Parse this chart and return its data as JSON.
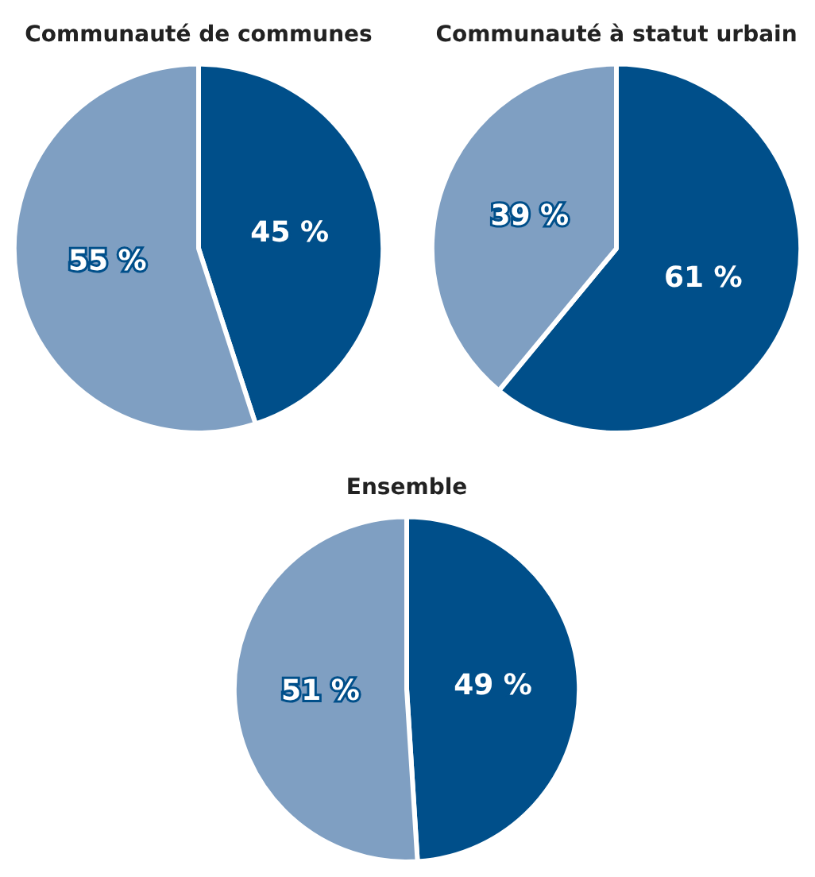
{
  "chart_data": [
    {
      "type": "pie",
      "title": "Communauté de communes",
      "categories": [
        null,
        null
      ],
      "values": [
        45,
        55
      ],
      "colors": [
        "#004f8a",
        "#7f9fc2"
      ],
      "value_labels": [
        "45 %",
        "55 %"
      ],
      "legend": false
    },
    {
      "type": "pie",
      "title": "Communauté à statut urbain",
      "categories": [
        null,
        null
      ],
      "values": [
        61,
        39
      ],
      "colors": [
        "#004f8a",
        "#7f9fc2"
      ],
      "value_labels": [
        "61 %",
        "39 %"
      ],
      "legend": false
    },
    {
      "type": "pie",
      "title": "Ensemble",
      "categories": [
        null,
        null
      ],
      "values": [
        49,
        51
      ],
      "colors": [
        "#004f8a",
        "#7f9fc2"
      ],
      "value_labels": [
        "49 %",
        "51 %"
      ],
      "legend": false
    }
  ]
}
